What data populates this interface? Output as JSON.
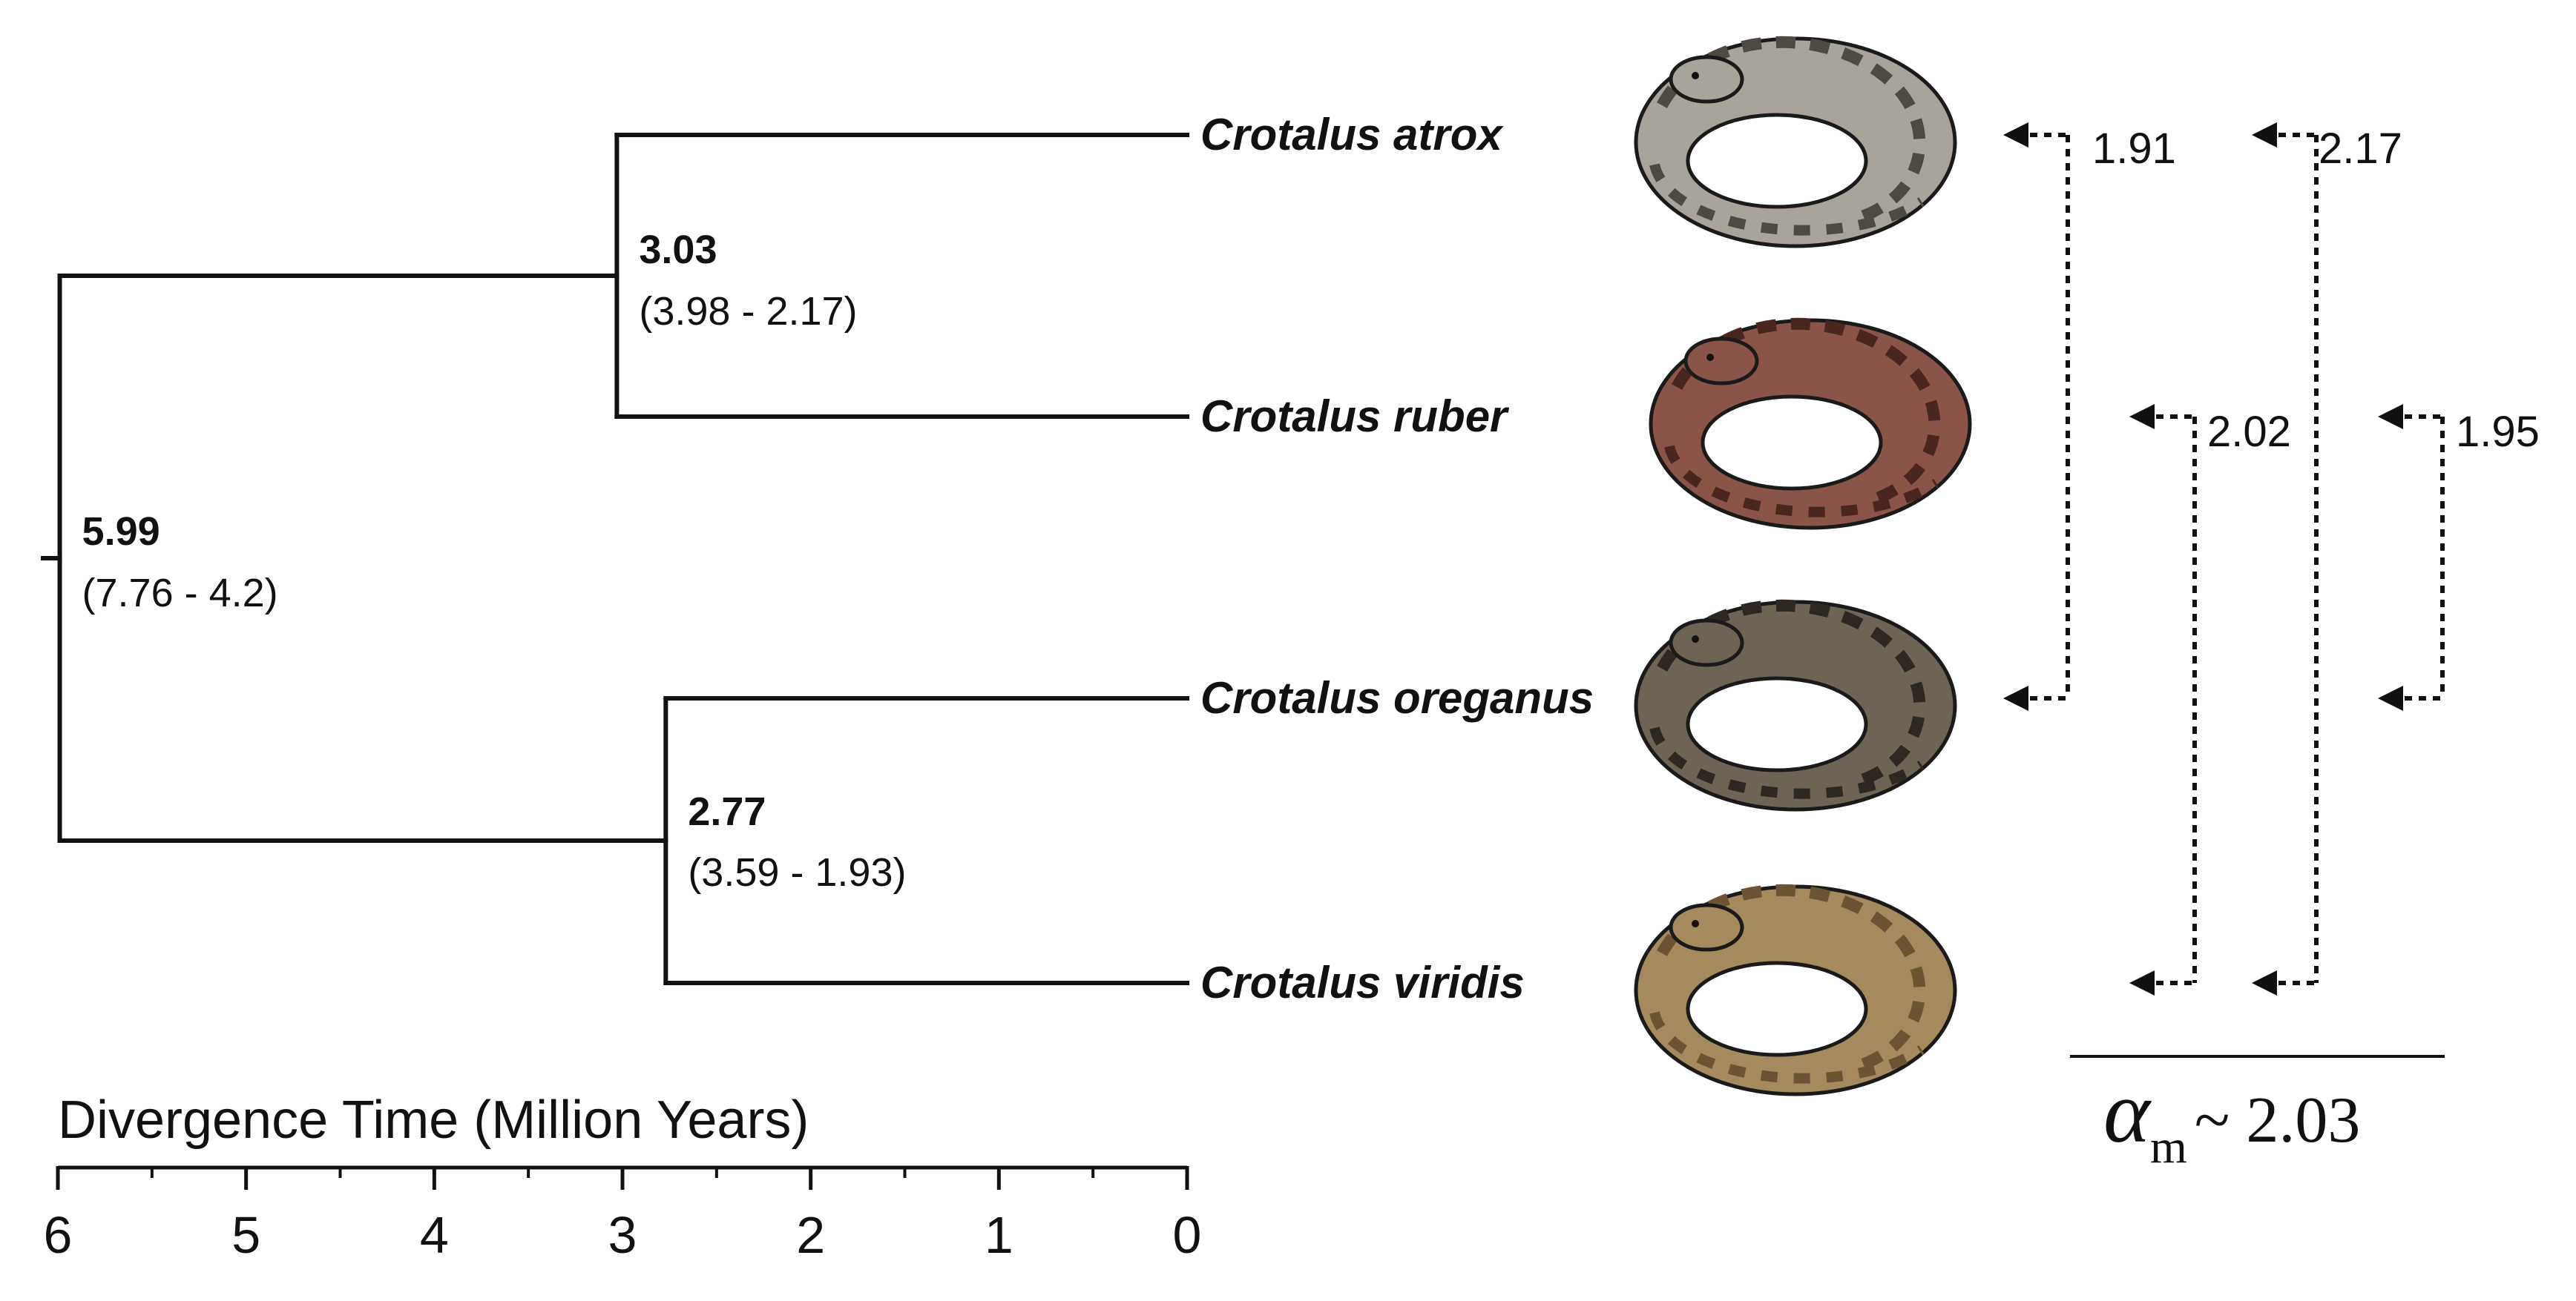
{
  "axis": {
    "title": "Divergence Time (Million Years)",
    "ticks": [
      "6",
      "5",
      "4",
      "3",
      "2",
      "1",
      "0"
    ],
    "tick_values": [
      6,
      5,
      4,
      3,
      2,
      1,
      0
    ],
    "minor_tick_values": [
      5.5,
      4.5,
      3.5,
      2.5,
      1.5,
      0.5
    ],
    "range": [
      6,
      0
    ]
  },
  "root": {
    "age": 5.99,
    "label": "5.99",
    "interval": "(7.76 - 4.2)"
  },
  "clades": [
    {
      "age": 3.03,
      "label": "3.03",
      "interval": "(3.98 - 2.17)",
      "tips": [
        "Crotalus atrox",
        "Crotalus ruber"
      ]
    },
    {
      "age": 2.77,
      "label": "2.77",
      "interval": "(3.59 - 1.93)",
      "tips": [
        "Crotalus oreganus",
        "Crotalus viridis"
      ]
    }
  ],
  "taxa": [
    {
      "name": "Crotalus atrox",
      "color": "#a9a49b",
      "pattern": "#4d4943"
    },
    {
      "name": "Crotalus ruber",
      "color": "#8a5448",
      "pattern": "#4a2620"
    },
    {
      "name": "Crotalus oreganus",
      "color": "#6e6456",
      "pattern": "#2e2822"
    },
    {
      "name": "Crotalus viridis",
      "color": "#a58a5e",
      "pattern": "#6b5433"
    }
  ],
  "migration": [
    {
      "from": "Crotalus atrox",
      "to": "Crotalus oreganus",
      "value": "1.91"
    },
    {
      "from": "Crotalus ruber",
      "to": "Crotalus viridis",
      "value": "2.02"
    },
    {
      "from": "Crotalus atrox",
      "to": "Crotalus viridis",
      "value": "2.17"
    },
    {
      "from": "Crotalus ruber",
      "to": "Crotalus oreganus",
      "value": "1.95"
    }
  ],
  "alpha": {
    "symbol": "α",
    "subscript": "m",
    "value": "~ 2.03"
  }
}
